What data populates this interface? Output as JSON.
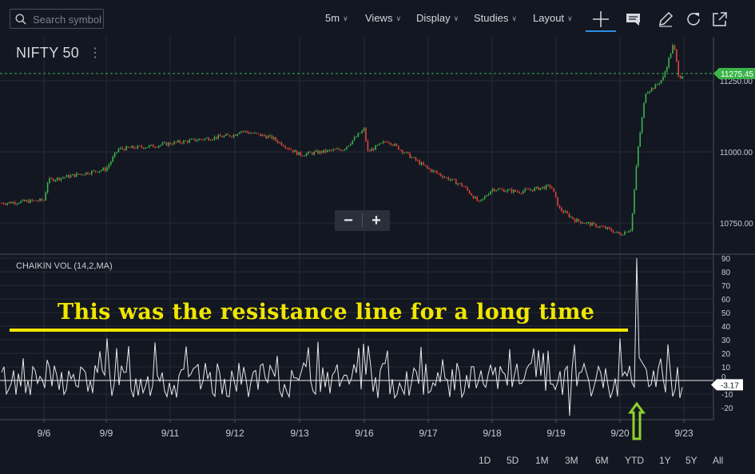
{
  "toolbar": {
    "search_placeholder": "Search symbol",
    "interval": "5m",
    "views": "Views",
    "display": "Display",
    "studies": "Studies",
    "layout": "Layout"
  },
  "chart": {
    "symbol": "NIFTY 50",
    "indicator_label": "CHAIKIN VOL (14,2,MA)",
    "annotation": "This was the resistance line for a long time",
    "zoom_out": "−",
    "zoom_in": "+"
  },
  "chart_data": [
    {
      "type": "candlestick",
      "title": "NIFTY 50",
      "x_ticks": [
        "9/6",
        "9/9",
        "9/11",
        "9/12",
        "9/13",
        "9/16",
        "9/17",
        "9/18",
        "9/19",
        "9/20",
        "9/23"
      ],
      "y_ticks": [
        10750.0,
        11000.0,
        11250.0
      ],
      "last_price": "11275.45",
      "approx_levels": [
        {
          "x": "9/6",
          "close": 10820
        },
        {
          "x": "9/9",
          "close": 10940
        },
        {
          "x": "9/11",
          "close": 11020
        },
        {
          "x": "9/12",
          "close": 11060
        },
        {
          "x": "9/13",
          "close": 10990
        },
        {
          "x": "9/16",
          "close": 11000
        },
        {
          "x": "9/17",
          "close": 10880
        },
        {
          "x": "9/18",
          "close": 10840
        },
        {
          "x": "9/19",
          "close": 10720
        },
        {
          "x": "9/20",
          "close": 11270
        },
        {
          "x": "9/23",
          "close": 11275.45
        }
      ],
      "colors": {
        "up": "#3bb54a",
        "down": "#e2443a",
        "last_price_tag": "#3bb54a"
      }
    },
    {
      "type": "line",
      "title": "CHAIKIN VOL (14,2,MA)",
      "y_ticks": [
        90,
        80,
        70,
        60,
        50,
        40,
        30,
        20,
        10,
        0,
        -10,
        -20
      ],
      "last_value": "-3.17",
      "resistance_level": 30,
      "spike_peak": 90,
      "colors": {
        "line": "#e8e8e8",
        "annotation": "#f0e600"
      }
    }
  ],
  "range_buttons": [
    "1D",
    "5D",
    "1M",
    "3M",
    "6M",
    "YTD",
    "1Y",
    "5Y",
    "All"
  ],
  "colors": {
    "background": "#131722",
    "accent": "#2e8de6",
    "annotation": "#f0e600",
    "arrow": "#8fd12a"
  }
}
